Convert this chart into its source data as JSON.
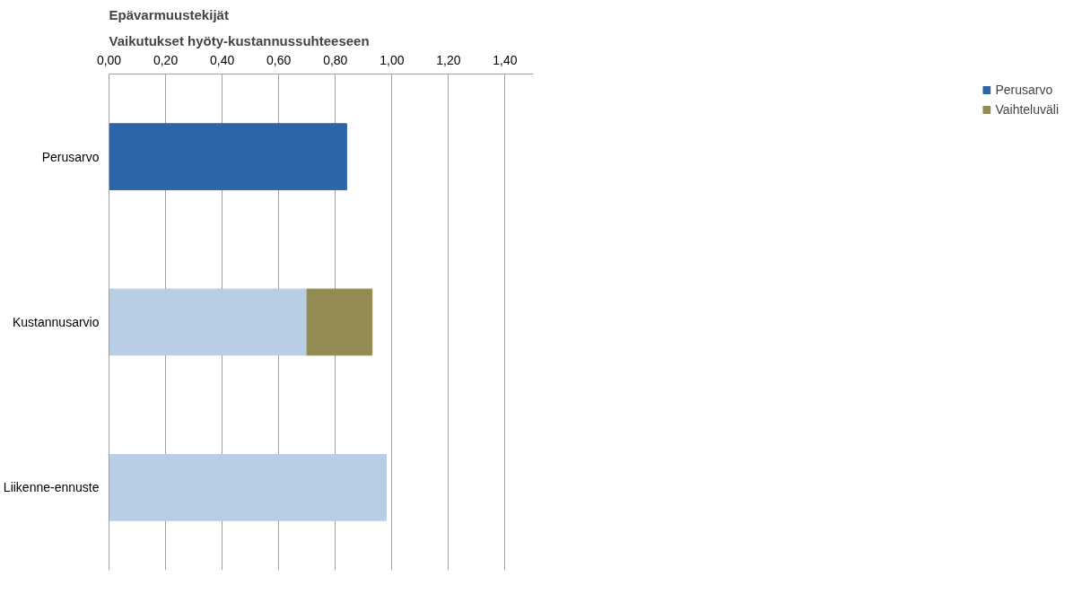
{
  "chart_data": {
    "type": "bar",
    "orientation": "horizontal",
    "stacked": true,
    "title": "Epävarmuustekijät",
    "subtitle": "Vaikutukset hyöty-kustannussuhteeseen",
    "categories": [
      "Perusarvo",
      "Kustannusarvio",
      "Liikenne-ennuste"
    ],
    "series": [
      {
        "name": "Perusarvo",
        "color": "#2e64a8",
        "values": [
          0.84,
          null,
          null
        ]
      },
      {
        "color": "#b9cde5",
        "values": [
          null,
          0.7,
          0.98
        ]
      },
      {
        "name": "Vaihteluväli",
        "color": "#948a54",
        "values": [
          null,
          0.23,
          null
        ]
      }
    ],
    "xlim": [
      0,
      1.5
    ],
    "xticks": [
      {
        "value": 0,
        "label": "0,00"
      },
      {
        "value": 0.2,
        "label": "0,20"
      },
      {
        "value": 0.4,
        "label": "0,40"
      },
      {
        "value": 0.6,
        "label": "0,60"
      },
      {
        "value": 0.8,
        "label": "0,80"
      },
      {
        "value": 1.0,
        "label": "1,00"
      },
      {
        "value": 1.2,
        "label": "1,20"
      },
      {
        "value": 1.4,
        "label": "1,40"
      }
    ],
    "grid": "x",
    "legend": "right"
  }
}
